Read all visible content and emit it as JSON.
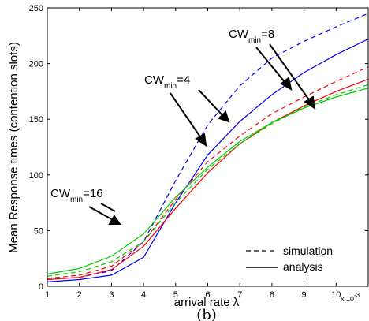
{
  "chart_data": {
    "type": "line",
    "xlabel": "arrival rate λ",
    "ylabel": "Mean Response times (contention slots)",
    "x_multiplier": {
      "base": "x 10",
      "exponent": "-3"
    },
    "xlim": [
      1,
      11
    ],
    "ylim": [
      0,
      250
    ],
    "xticks": [
      1,
      2,
      3,
      4,
      5,
      6,
      7,
      8,
      9,
      10
    ],
    "yticks": [
      0,
      50,
      100,
      150,
      200,
      250
    ],
    "grid": false,
    "caption": "(b)",
    "legend": {
      "placement": "bottom-right",
      "entries": [
        {
          "label": "simulation",
          "style": "dashed"
        },
        {
          "label": "analysis",
          "style": "solid"
        }
      ]
    },
    "annotations": [
      {
        "main": "CW",
        "sub": "min",
        "rest": "=16"
      },
      {
        "main": "CW",
        "sub": "min",
        "rest": "=4"
      },
      {
        "main": "CW",
        "sub": "min",
        "rest": "=8"
      }
    ],
    "x": [
      1,
      2,
      3,
      4,
      5,
      6,
      7,
      8,
      9,
      10,
      11
    ],
    "series": [
      {
        "group": "CWmin=4",
        "style": "dashed",
        "color": "#0000ff",
        "values": [
          6,
          8,
          14,
          40,
          95,
          145,
          180,
          205,
          220,
          233,
          245
        ]
      },
      {
        "group": "CWmin=4",
        "style": "solid",
        "color": "#0000ff",
        "values": [
          4,
          6,
          10,
          26,
          75,
          118,
          148,
          172,
          192,
          208,
          222
        ]
      },
      {
        "group": "CWmin=8",
        "style": "dashed",
        "color": "#ff0000",
        "values": [
          7,
          10,
          18,
          40,
          78,
          112,
          135,
          155,
          170,
          184,
          197
        ]
      },
      {
        "group": "CWmin=8",
        "style": "solid",
        "color": "#ff0000",
        "values": [
          6,
          8,
          15,
          36,
          70,
          102,
          128,
          147,
          162,
          175,
          186
        ]
      },
      {
        "group": "CWmin=16",
        "style": "dashed",
        "color": "#00cc00",
        "values": [
          9,
          13,
          22,
          40,
          75,
          105,
          128,
          146,
          161,
          172,
          181
        ]
      },
      {
        "group": "CWmin=16",
        "style": "solid",
        "color": "#00cc00",
        "values": [
          11,
          16,
          27,
          47,
          80,
          107,
          130,
          147,
          160,
          170,
          178
        ]
      }
    ]
  }
}
